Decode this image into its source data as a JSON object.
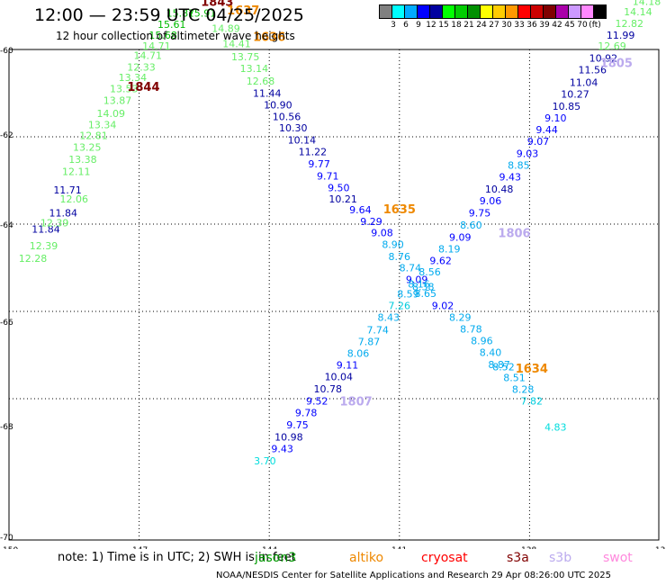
{
  "header": {
    "title": "12:00 — 23:59 UTC 04/25/2025",
    "subtitle": "12 hour collection of altimeter wave heights"
  },
  "color_scale": {
    "colors": [
      "#808080",
      "#00ffff",
      "#00aaff",
      "#0000ff",
      "#0000a0",
      "#00ff00",
      "#00cc00",
      "#009000",
      "#ffff00",
      "#ffcc00",
      "#ff9900",
      "#ff0000",
      "#cc0000",
      "#800000",
      "#aa00aa",
      "#cc99ff",
      "#ff88ff",
      "#000000"
    ],
    "labels": [
      "3",
      "6",
      "9",
      "12",
      "15",
      "18",
      "21",
      "24",
      "27",
      "30",
      "33",
      "36",
      "39",
      "42",
      "45",
      "70",
      "(ft)"
    ]
  },
  "map": {
    "lon_ticks": [
      "-150",
      "-147",
      "-144",
      "-141",
      "-138",
      "-13"
    ],
    "lat_ticks": [
      "-60",
      "-62",
      "-64",
      "-66",
      "-68",
      "-70"
    ],
    "tracks": [
      {
        "points": [
          {
            "lon": -149.45,
            "lat": -64.87,
            "text": "12.28",
            "color": "#66ee66"
          },
          {
            "lon": -149.2,
            "lat": -64.58,
            "text": "12.39",
            "color": "#66ee66"
          },
          {
            "lon": -149.15,
            "lat": -64.2,
            "text": "11.84",
            "color": "#0000a0"
          },
          {
            "lon": -148.75,
            "lat": -63.82,
            "text": "11.84",
            "color": "#0000a0"
          },
          {
            "lon": -148.95,
            "lat": -64.05,
            "text": "12.39",
            "color": "#66ee66"
          },
          {
            "lon": -148.5,
            "lat": -63.5,
            "text": "12.06",
            "color": "#66ee66"
          },
          {
            "lon": -148.65,
            "lat": -63.3,
            "text": "11.71",
            "color": "#0000a0"
          },
          {
            "lon": -148.45,
            "lat": -62.88,
            "text": "12.11",
            "color": "#66ee66"
          },
          {
            "lon": -148.3,
            "lat": -62.6,
            "text": "13.38",
            "color": "#66ee66"
          },
          {
            "lon": -148.2,
            "lat": -62.32,
            "text": "13.25",
            "color": "#66ee66"
          },
          {
            "lon": -148.05,
            "lat": -62.05,
            "text": "12.81",
            "color": "#66ee66"
          },
          {
            "lon": -147.85,
            "lat": -61.8,
            "text": "13.34",
            "color": "#66ee66"
          },
          {
            "lon": -147.65,
            "lat": -61.55,
            "text": "14.09",
            "color": "#66ee66"
          },
          {
            "lon": -147.5,
            "lat": -61.25,
            "text": "13.87",
            "color": "#66ee66"
          },
          {
            "lon": -147.35,
            "lat": -60.98,
            "text": "13.53",
            "color": "#66ee66"
          },
          {
            "lon": -147.15,
            "lat": -60.72,
            "text": "13.34",
            "color": "#66ee66"
          },
          {
            "lon": -146.95,
            "lat": -60.48,
            "text": "12.33",
            "color": "#66ee66"
          },
          {
            "lon": -146.8,
            "lat": -60.22,
            "text": "14.71",
            "color": "#66ee66"
          },
          {
            "lon": -146.6,
            "lat": -60.0,
            "text": "14.71",
            "color": "#66ee66"
          },
          {
            "lon": -146.45,
            "lat": -59.75,
            "text": "15.68",
            "color": "#00bb00"
          },
          {
            "lon": -146.25,
            "lat": -59.5,
            "text": "15.61",
            "color": "#00bb00"
          },
          {
            "lon": -146.05,
            "lat": -59.25,
            "text": "15.87",
            "color": "#00bb00"
          },
          {
            "lon": -145.55,
            "lat": -59.25,
            "text": "15.91",
            "color": "#00bb00"
          },
          {
            "lon": -145.0,
            "lat": -59.6,
            "text": "14.89",
            "color": "#66ee66"
          },
          {
            "lon": -144.75,
            "lat": -59.95,
            "text": "14.41",
            "color": "#66ee66"
          },
          {
            "lon": -144.55,
            "lat": -60.25,
            "text": "13.75",
            "color": "#66ee66"
          },
          {
            "lon": -144.35,
            "lat": -60.52,
            "text": "13.14",
            "color": "#66ee66"
          },
          {
            "lon": -144.2,
            "lat": -60.8,
            "text": "12.68",
            "color": "#66ee66"
          },
          {
            "lon": -144.05,
            "lat": -61.08,
            "text": "11.44",
            "color": "#0000a0"
          },
          {
            "lon": -143.8,
            "lat": -61.35,
            "text": "10.90",
            "color": "#0000a0"
          },
          {
            "lon": -143.6,
            "lat": -61.62,
            "text": "10.56",
            "color": "#0000a0"
          },
          {
            "lon": -143.45,
            "lat": -61.88,
            "text": "10.30",
            "color": "#0000a0"
          },
          {
            "lon": -143.25,
            "lat": -62.15,
            "text": "10.14",
            "color": "#0000a0"
          },
          {
            "lon": -143.0,
            "lat": -62.42,
            "text": "11.22",
            "color": "#0000a0"
          },
          {
            "lon": -142.85,
            "lat": -62.7,
            "text": "9.77",
            "color": "#0000ff"
          },
          {
            "lon": -142.65,
            "lat": -62.98,
            "text": "9.71",
            "color": "#0000ff"
          },
          {
            "lon": -142.4,
            "lat": -63.25,
            "text": "9.50",
            "color": "#0000ff"
          },
          {
            "lon": -142.3,
            "lat": -63.5,
            "text": "10.21",
            "color": "#0000a0"
          },
          {
            "lon": -141.9,
            "lat": -63.75,
            "text": "9.64",
            "color": "#0000ff"
          },
          {
            "lon": -141.65,
            "lat": -64.02,
            "text": "9.29",
            "color": "#0000ff"
          },
          {
            "lon": -141.4,
            "lat": -64.28,
            "text": "9.08",
            "color": "#0000ff"
          },
          {
            "lon": -141.15,
            "lat": -64.55,
            "text": "8.90",
            "color": "#00aaee"
          },
          {
            "lon": -141.0,
            "lat": -64.82,
            "text": "8.76",
            "color": "#00aaee"
          },
          {
            "lon": -140.75,
            "lat": -65.08,
            "text": "8.74",
            "color": "#00aaee"
          },
          {
            "lon": -140.6,
            "lat": -65.35,
            "text": "9.09",
            "color": "#0000ff"
          },
          {
            "lon": -140.45,
            "lat": -65.52,
            "text": "8.38",
            "color": "#00aaee"
          },
          {
            "lon": -140.4,
            "lat": -65.67,
            "text": "8.65",
            "color": "#00aaee"
          },
          {
            "lon": -140.0,
            "lat": -65.95,
            "text": "9.02",
            "color": "#0000ff"
          },
          {
            "lon": -139.6,
            "lat": -66.22,
            "text": "8.29",
            "color": "#00aaee"
          },
          {
            "lon": -139.35,
            "lat": -66.48,
            "text": "8.78",
            "color": "#00aaee"
          },
          {
            "lon": -139.1,
            "lat": -66.75,
            "text": "8.96",
            "color": "#00aaee"
          },
          {
            "lon": -138.9,
            "lat": -67.02,
            "text": "8.40",
            "color": "#00aaee"
          },
          {
            "lon": -138.7,
            "lat": -67.3,
            "text": "8.87",
            "color": "#00aaee"
          },
          {
            "lon": -138.6,
            "lat": -67.35,
            "text": "8.52",
            "color": "#00aaee"
          },
          {
            "lon": -138.35,
            "lat": -67.6,
            "text": "8.51",
            "color": "#00aaee"
          },
          {
            "lon": -138.15,
            "lat": -67.87,
            "text": "8.28",
            "color": "#00aaee"
          },
          {
            "lon": -137.95,
            "lat": -68.13,
            "text": "7.82",
            "color": "#00ccdd"
          },
          {
            "lon": -137.4,
            "lat": -68.73,
            "text": "4.83",
            "color": "#00dddd"
          }
        ]
      },
      {
        "points": [
          {
            "lon": -144.1,
            "lat": -69.5,
            "text": "3.70",
            "color": "#00dddd"
          },
          {
            "lon": -143.7,
            "lat": -69.23,
            "text": "9.43",
            "color": "#0000ff"
          },
          {
            "lon": -143.55,
            "lat": -68.96,
            "text": "10.98",
            "color": "#0000a0"
          },
          {
            "lon": -143.35,
            "lat": -68.68,
            "text": "9.75",
            "color": "#0000ff"
          },
          {
            "lon": -143.15,
            "lat": -68.4,
            "text": "9.78",
            "color": "#0000ff"
          },
          {
            "lon": -142.9,
            "lat": -68.13,
            "text": "9.52",
            "color": "#0000ff"
          },
          {
            "lon": -142.65,
            "lat": -67.86,
            "text": "10.78",
            "color": "#0000a0"
          },
          {
            "lon": -142.4,
            "lat": -67.58,
            "text": "10.04",
            "color": "#0000a0"
          },
          {
            "lon": -142.2,
            "lat": -67.31,
            "text": "9.11",
            "color": "#0000ff"
          },
          {
            "lon": -141.95,
            "lat": -67.04,
            "text": "8.06",
            "color": "#00aaee"
          },
          {
            "lon": -141.7,
            "lat": -66.77,
            "text": "7.87",
            "color": "#00aaee"
          },
          {
            "lon": -141.5,
            "lat": -66.5,
            "text": "7.74",
            "color": "#00aaee"
          },
          {
            "lon": -141.25,
            "lat": -66.22,
            "text": "8.43",
            "color": "#00aaee"
          },
          {
            "lon": -141.0,
            "lat": -65.95,
            "text": "7.26",
            "color": "#00ccdd"
          },
          {
            "lon": -140.8,
            "lat": -65.68,
            "text": "8.59",
            "color": "#00aaee"
          },
          {
            "lon": -140.55,
            "lat": -65.45,
            "text": "8.16",
            "color": "#00aaee"
          },
          {
            "lon": -140.3,
            "lat": -65.18,
            "text": "8.56",
            "color": "#00aaee"
          },
          {
            "lon": -140.05,
            "lat": -64.92,
            "text": "9.62",
            "color": "#0000ff"
          },
          {
            "lon": -139.85,
            "lat": -64.65,
            "text": "8.19",
            "color": "#00aaee"
          },
          {
            "lon": -139.6,
            "lat": -64.38,
            "text": "9.09",
            "color": "#0000ff"
          },
          {
            "lon": -139.35,
            "lat": -64.1,
            "text": "8.60",
            "color": "#00aaee"
          },
          {
            "lon": -139.15,
            "lat": -63.82,
            "text": "9.75",
            "color": "#0000ff"
          },
          {
            "lon": -138.9,
            "lat": -63.55,
            "text": "9.06",
            "color": "#0000ff"
          },
          {
            "lon": -138.7,
            "lat": -63.28,
            "text": "10.48",
            "color": "#0000a0"
          },
          {
            "lon": -138.45,
            "lat": -63.0,
            "text": "9.43",
            "color": "#0000ff"
          },
          {
            "lon": -138.25,
            "lat": -62.73,
            "text": "8.85",
            "color": "#00aaee"
          },
          {
            "lon": -138.05,
            "lat": -62.46,
            "text": "9.03",
            "color": "#0000ff"
          },
          {
            "lon": -137.8,
            "lat": -62.19,
            "text": "9.07",
            "color": "#0000ff"
          },
          {
            "lon": -137.6,
            "lat": -61.92,
            "text": "9.44",
            "color": "#0000ff"
          },
          {
            "lon": -137.4,
            "lat": -61.65,
            "text": "9.10",
            "color": "#0000ff"
          },
          {
            "lon": -137.15,
            "lat": -61.38,
            "text": "10.85",
            "color": "#0000a0"
          },
          {
            "lon": -136.95,
            "lat": -61.1,
            "text": "10.27",
            "color": "#0000a0"
          },
          {
            "lon": -136.75,
            "lat": -60.83,
            "text": "11.04",
            "color": "#0000a0"
          },
          {
            "lon": -136.55,
            "lat": -60.55,
            "text": "11.56",
            "color": "#0000a0"
          },
          {
            "lon": -136.3,
            "lat": -60.28,
            "text": "10.92",
            "color": "#0000a0"
          },
          {
            "lon": -136.1,
            "lat": -60.0,
            "text": "12.69",
            "color": "#66ee66"
          },
          {
            "lon": -135.9,
            "lat": -59.75,
            "text": "11.99",
            "color": "#0000a0"
          },
          {
            "lon": -135.7,
            "lat": -59.48,
            "text": "12.82",
            "color": "#66ee66"
          },
          {
            "lon": -135.5,
            "lat": -59.22,
            "text": "14.14",
            "color": "#66ee66"
          },
          {
            "lon": -135.3,
            "lat": -58.98,
            "text": "14.18",
            "color": "#66ee66"
          }
        ]
      }
    ],
    "time_labels": [
      {
        "lon": -145.2,
        "lat": -59.0,
        "text": "1843",
        "color": "#800000"
      },
      {
        "lon": -144.6,
        "lat": -59.2,
        "text": "1637",
        "color": "#ee8800"
      },
      {
        "lon": -144.0,
        "lat": -59.8,
        "text": "1636",
        "color": "#ee8800"
      },
      {
        "lon": -146.9,
        "lat": -60.95,
        "text": "1844",
        "color": "#800000"
      },
      {
        "lon": -141.0,
        "lat": -63.75,
        "text": "1635",
        "color": "#ee8800"
      },
      {
        "lon": -138.35,
        "lat": -64.3,
        "text": "1806",
        "color": "#bbaaee"
      },
      {
        "lon": -136.0,
        "lat": -60.4,
        "text": "1805",
        "color": "#bbaaee"
      },
      {
        "lon": -134.6,
        "lat": -59.0,
        "text": "180",
        "color": "#bbaaee"
      },
      {
        "lon": -137.95,
        "lat": -67.4,
        "text": "1634",
        "color": "#ee8800"
      },
      {
        "lon": -142.0,
        "lat": -68.15,
        "text": "1807",
        "color": "#bbaaee"
      }
    ]
  },
  "footer": {
    "note": "note: 1) Time is in UTC; 2) SWH is in feet",
    "legend": [
      {
        "name": "jason3",
        "color": "#009900"
      },
      {
        "name": "altiko",
        "color": "#ee8800"
      },
      {
        "name": "cryosat",
        "color": "#ff0000"
      },
      {
        "name": "s3a",
        "color": "#800000"
      },
      {
        "name": "s3b",
        "color": "#bbaaee"
      },
      {
        "name": "swot",
        "color": "#ff88dd"
      }
    ],
    "credit": "NOAA/NESDIS Center for Satellite Applications and Research    29 Apr 08:26:00 UTC 2025"
  }
}
